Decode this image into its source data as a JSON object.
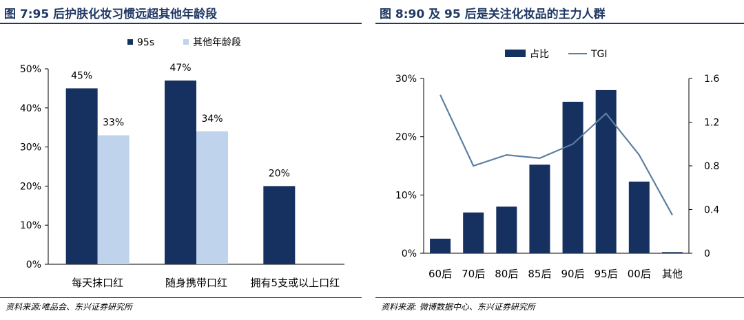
{
  "colors": {
    "navy": "#16305f",
    "light": "#c0d3ec",
    "line": "#5b7fa3",
    "title": "#1f3864"
  },
  "left": {
    "title": "图 7:95 后护肤化妆习惯远超其他年龄段",
    "source": "资料来源:唯品会、东兴证券研究所"
  },
  "right": {
    "title": "图 8:90 及 95 后是关注化妆品的主力人群",
    "source": "资料来源: 微博数据中心、东兴证券研究所"
  },
  "chart_data": [
    {
      "type": "bar",
      "categories": [
        "每天抹口红",
        "随身携带口红",
        "拥有5支或以上口红"
      ],
      "series": [
        {
          "name": "95s",
          "values": [
            45,
            47,
            20
          ],
          "labels": [
            "45%",
            "47%",
            "20%"
          ]
        },
        {
          "name": "其他年龄段",
          "values": [
            33,
            34,
            null
          ],
          "labels": [
            "33%",
            "34%",
            ""
          ]
        }
      ],
      "ylim": [
        0,
        50
      ],
      "yticks": [
        "0%",
        "10%",
        "20%",
        "30%",
        "40%",
        "50%"
      ],
      "legend": "top"
    },
    {
      "type": "bar+line",
      "categories": [
        "60后",
        "70后",
        "80后",
        "85后",
        "90后",
        "95后",
        "00后",
        "其他"
      ],
      "series": [
        {
          "name": "占比",
          "type": "bar",
          "axis": "left",
          "values": [
            2.5,
            7.0,
            8.0,
            15.2,
            26.0,
            28.0,
            12.3,
            0.2
          ]
        },
        {
          "name": "TGI",
          "type": "line",
          "axis": "right",
          "values": [
            1.45,
            0.8,
            0.9,
            0.87,
            1.0,
            1.28,
            0.9,
            0.35
          ]
        }
      ],
      "ylim": [
        0,
        30
      ],
      "yticks": [
        "0%",
        "10%",
        "20%",
        "30%"
      ],
      "y2lim": [
        0,
        1.6
      ],
      "y2ticks": [
        "0",
        "0.4",
        "0.8",
        "1.2",
        "1.6"
      ],
      "legend": "top"
    }
  ]
}
